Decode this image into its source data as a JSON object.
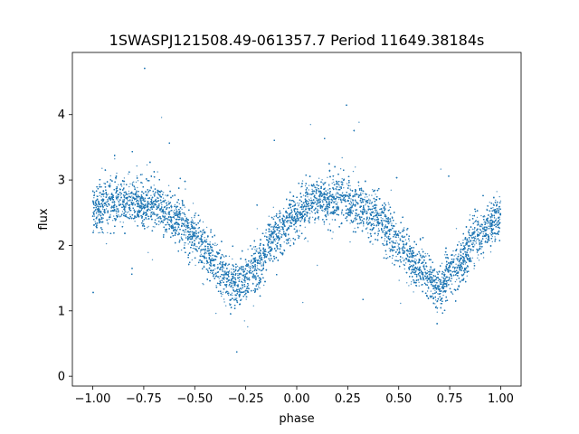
{
  "chart_data": {
    "type": "scatter",
    "title": "1SWASPJ121508.49-061357.7 Period 11649.38184s",
    "xlabel": "phase",
    "ylabel": "flux",
    "xlim": [
      -1.1,
      1.1
    ],
    "ylim": [
      -0.15,
      4.95
    ],
    "x_ticks": [
      -1.0,
      -0.75,
      -0.5,
      -0.25,
      0.0,
      0.25,
      0.5,
      0.75,
      1.0
    ],
    "x_tick_labels": [
      "−1.00",
      "−0.75",
      "−0.50",
      "−0.25",
      "0.00",
      "0.25",
      "0.50",
      "0.75",
      "1.00"
    ],
    "y_ticks": [
      0,
      1,
      2,
      3,
      4
    ],
    "y_tick_labels": [
      "0",
      "1",
      "2",
      "3",
      "4"
    ],
    "grid": false,
    "marker_color": "#1f77b4",
    "series": [
      {
        "name": "",
        "x_range": [
          -1.0,
          1.0
        ],
        "point_count": 20000,
        "profile": {
          "phase": [
            -1.0,
            -0.9,
            -0.8,
            -0.7,
            -0.6,
            -0.5,
            -0.4,
            -0.3,
            -0.2,
            -0.1,
            0.0,
            0.1,
            0.2,
            0.3,
            0.4,
            0.5,
            0.6,
            0.7,
            0.8,
            0.9,
            1.0
          ],
          "mean_flux": [
            2.55,
            2.65,
            2.68,
            2.62,
            2.45,
            2.15,
            1.7,
            1.4,
            1.65,
            2.15,
            2.5,
            2.68,
            2.72,
            2.62,
            2.4,
            2.05,
            1.65,
            1.35,
            1.75,
            2.15,
            2.45
          ],
          "scatter_sigma": 0.18
        }
      }
    ]
  }
}
